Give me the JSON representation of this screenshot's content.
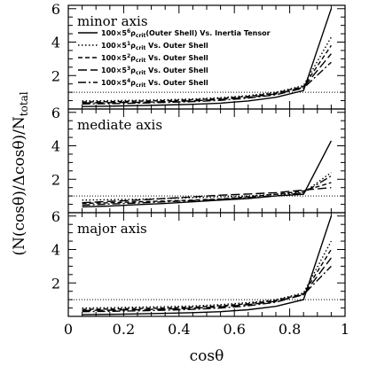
{
  "chart_data": {
    "type": "line",
    "ylabel": "(N(cosθ)/Δcosθ)/N",
    "ylabel_sub": "total",
    "xlabel": "cosθ",
    "x_ticks": [
      "0",
      "0.2",
      "0.4",
      "0.6",
      "0.8",
      "1"
    ],
    "y_ticks": [
      "2",
      "4",
      "6"
    ],
    "xlim": [
      0,
      1
    ],
    "ylim": [
      0,
      6.2
    ],
    "legend": {
      "placement": "top-left, first panel",
      "entries": [
        {
          "prefix": "100×5",
          "sup": "6",
          "rho": "ρ",
          "sub": "crit",
          "suffix": "(Outer Shell) Vs. Inertia Tensor",
          "style": "solid"
        },
        {
          "prefix": "100×5",
          "sup": "1",
          "rho": "ρ",
          "sub": "crit",
          "suffix": " Vs. Outer Shell",
          "style": "dotted"
        },
        {
          "prefix": "100×5",
          "sup": "2",
          "rho": "ρ",
          "sub": "crit",
          "suffix": " Vs. Outer Shell",
          "style": "short-dash"
        },
        {
          "prefix": "100×5",
          "sup": "3",
          "rho": "ρ",
          "sub": "crit",
          "suffix": " Vs. Outer Shell",
          "style": "long-dash"
        },
        {
          "prefix": "100×5",
          "sup": "4",
          "rho": "ρ",
          "sub": "crit",
          "suffix": " Vs. Outer Shell",
          "style": "dash-dot"
        }
      ]
    },
    "reference_line": 1,
    "x": [
      0.05,
      0.15,
      0.25,
      0.35,
      0.45,
      0.55,
      0.65,
      0.75,
      0.85,
      0.95
    ],
    "panels": [
      {
        "label": "minor axis",
        "series": [
          {
            "values": [
              0.15,
              0.17,
              0.2,
              0.24,
              0.28,
              0.35,
              0.48,
              0.7,
              1.1,
              6.0
            ]
          },
          {
            "values": [
              0.48,
              0.5,
              0.52,
              0.55,
              0.6,
              0.68,
              0.8,
              1.0,
              1.4,
              4.3
            ]
          },
          {
            "values": [
              0.42,
              0.44,
              0.47,
              0.5,
              0.55,
              0.63,
              0.76,
              0.95,
              1.35,
              3.8
            ]
          },
          {
            "values": [
              0.36,
              0.38,
              0.4,
              0.44,
              0.49,
              0.57,
              0.7,
              0.9,
              1.3,
              3.3
            ]
          },
          {
            "values": [
              0.3,
              0.32,
              0.35,
              0.39,
              0.44,
              0.52,
              0.65,
              0.85,
              1.25,
              2.8
            ]
          }
        ]
      },
      {
        "label": "mediate axis",
        "series": [
          {
            "values": [
              0.35,
              0.4,
              0.48,
              0.55,
              0.65,
              0.75,
              0.85,
              1.0,
              1.1,
              4.3
            ]
          },
          {
            "values": [
              0.75,
              0.78,
              0.8,
              0.85,
              0.9,
              0.95,
              1.0,
              1.1,
              1.2,
              2.4
            ]
          },
          {
            "values": [
              0.55,
              0.6,
              0.65,
              0.7,
              0.75,
              0.82,
              0.95,
              1.1,
              1.3,
              1.8
            ]
          },
          {
            "values": [
              0.6,
              0.68,
              0.75,
              0.85,
              0.95,
              1.05,
              1.12,
              1.2,
              1.35,
              1.5
            ]
          },
          {
            "values": [
              0.45,
              0.52,
              0.58,
              0.65,
              0.72,
              0.8,
              0.9,
              1.0,
              1.2,
              2.2
            ]
          }
        ]
      },
      {
        "label": "major axis",
        "series": [
          {
            "values": [
              0.1,
              0.12,
              0.15,
              0.18,
              0.22,
              0.28,
              0.4,
              0.6,
              1.0,
              6.0
            ]
          },
          {
            "values": [
              0.5,
              0.52,
              0.55,
              0.58,
              0.62,
              0.7,
              0.82,
              1.0,
              1.4,
              4.5
            ]
          },
          {
            "values": [
              0.42,
              0.44,
              0.47,
              0.5,
              0.55,
              0.63,
              0.76,
              0.95,
              1.35,
              4.0
            ]
          },
          {
            "values": [
              0.35,
              0.37,
              0.4,
              0.44,
              0.49,
              0.57,
              0.7,
              0.9,
              1.3,
              3.5
            ]
          },
          {
            "values": [
              0.28,
              0.3,
              0.33,
              0.37,
              0.42,
              0.5,
              0.63,
              0.85,
              1.3,
              3.0
            ]
          }
        ]
      }
    ]
  }
}
